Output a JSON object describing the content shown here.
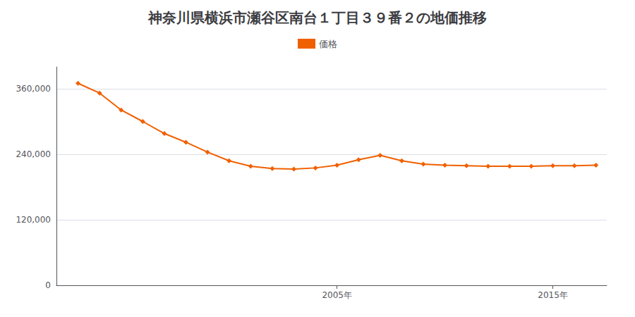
{
  "chart_data": {
    "type": "line",
    "title": "神奈川県横浜市瀬谷区南台１丁目３９番２の地価推移",
    "x": [
      1993,
      1994,
      1995,
      1996,
      1997,
      1998,
      1999,
      2000,
      2001,
      2002,
      2003,
      2004,
      2005,
      2006,
      2007,
      2008,
      2009,
      2010,
      2011,
      2012,
      2013,
      2014,
      2015,
      2016,
      2017
    ],
    "series": [
      {
        "name": "価格",
        "color": "#f06000",
        "marker": "diamond",
        "values": [
          370000,
          352000,
          321000,
          300000,
          278000,
          262000,
          244000,
          228000,
          218000,
          214000,
          213000,
          215000,
          220000,
          230000,
          238000,
          228000,
          222000,
          220000,
          219000,
          218000,
          218000,
          218000,
          219000,
          219000,
          220000
        ]
      }
    ],
    "xlim": [
      1992,
      2017.5
    ],
    "xticks": [
      {
        "value": 2005,
        "label": "2005年"
      },
      {
        "value": 2015,
        "label": "2015年"
      }
    ],
    "ylim": [
      0,
      400000
    ],
    "yticks": [
      0,
      {
        "value": 120000,
        "label": "120,000"
      },
      {
        "value": 240000,
        "label": "240,000"
      },
      {
        "value": 360000,
        "label": "360,000"
      }
    ],
    "grid": true,
    "legend": "top"
  }
}
